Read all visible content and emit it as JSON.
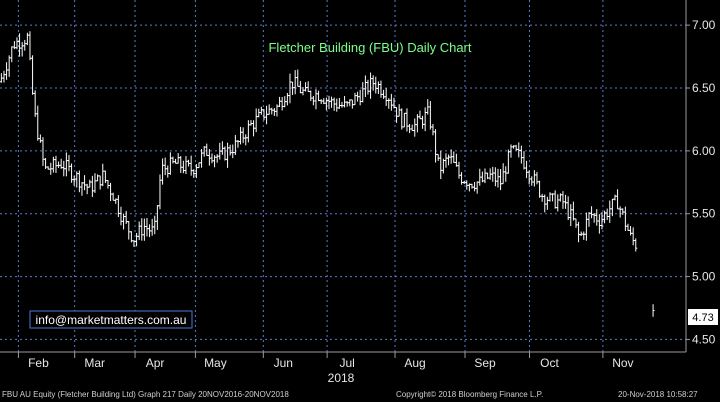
{
  "footer": {
    "left": "FBU AU Equity (Fletcher Building Ltd) Graph 217  Daily 20NOV2016-20NOV2018",
    "center": "Copyright© 2018 Bloomberg Finance L.P.",
    "right": "20-Nov-2018 10:58:27"
  },
  "email": "info@marketmatters.com.au",
  "colors": {
    "background": "#000000",
    "bars": "#ffffff",
    "title": "#7cff8a",
    "grid": "#5a7dc8",
    "email_box": "#4a7bd6",
    "last_price_box": "#ffffff"
  },
  "chart_data": {
    "type": "ohlc",
    "title": "Fletcher Building (FBU) Daily Chart",
    "xlabel": "2018",
    "ylabel": "",
    "ylim": [
      4.4,
      7.2
    ],
    "yticks": [
      "7.00",
      "6.50",
      "6.00",
      "5.50",
      "5.00",
      "4.50"
    ],
    "ytick_values": [
      7.0,
      6.5,
      6.0,
      5.5,
      5.0,
      4.5
    ],
    "month_labels": [
      "Feb",
      "Mar",
      "Apr",
      "May",
      "Jun",
      "Jul",
      "Aug",
      "Sep",
      "Oct",
      "Nov"
    ],
    "month_positions": [
      0.056,
      0.138,
      0.226,
      0.314,
      0.413,
      0.506,
      0.605,
      0.707,
      0.801,
      0.908
    ],
    "last_price": "4.73",
    "last_price_value": 4.73,
    "grid": true,
    "series_path": [
      [
        0.0,
        6.55
      ],
      [
        0.02,
        6.85
      ],
      [
        0.04,
        6.9
      ],
      [
        0.05,
        6.3
      ],
      [
        0.065,
        5.85
      ],
      [
        0.09,
        5.9
      ],
      [
        0.11,
        5.8
      ],
      [
        0.13,
        5.7
      ],
      [
        0.15,
        5.8
      ],
      [
        0.165,
        5.65
      ],
      [
        0.18,
        5.45
      ],
      [
        0.195,
        5.3
      ],
      [
        0.21,
        5.4
      ],
      [
        0.225,
        5.35
      ],
      [
        0.235,
        5.85
      ],
      [
        0.255,
        5.9
      ],
      [
        0.28,
        5.85
      ],
      [
        0.3,
        6.0
      ],
      [
        0.32,
        5.95
      ],
      [
        0.345,
        6.05
      ],
      [
        0.365,
        6.2
      ],
      [
        0.385,
        6.3
      ],
      [
        0.405,
        6.35
      ],
      [
        0.425,
        6.55
      ],
      [
        0.445,
        6.45
      ],
      [
        0.465,
        6.45
      ],
      [
        0.485,
        6.38
      ],
      [
        0.505,
        6.35
      ],
      [
        0.525,
        6.45
      ],
      [
        0.545,
        6.55
      ],
      [
        0.565,
        6.45
      ],
      [
        0.585,
        6.25
      ],
      [
        0.605,
        6.2
      ],
      [
        0.625,
        6.3
      ],
      [
        0.64,
        5.85
      ],
      [
        0.655,
        5.95
      ],
      [
        0.67,
        5.8
      ],
      [
        0.685,
        5.75
      ],
      [
        0.7,
        5.75
      ],
      [
        0.715,
        5.8
      ],
      [
        0.73,
        5.75
      ],
      [
        0.745,
        6.0
      ],
      [
        0.76,
        5.95
      ],
      [
        0.775,
        5.8
      ],
      [
        0.79,
        5.65
      ],
      [
        0.805,
        5.6
      ],
      [
        0.82,
        5.6
      ],
      [
        0.835,
        5.45
      ],
      [
        0.845,
        5.3
      ],
      [
        0.86,
        5.5
      ],
      [
        0.875,
        5.45
      ],
      [
        0.89,
        5.55
      ],
      [
        0.9,
        5.6
      ],
      [
        0.91,
        5.45
      ],
      [
        0.92,
        5.3
      ],
      [
        0.928,
        5.25
      ]
    ],
    "final_bar": [
      0.952,
      4.73
    ]
  }
}
